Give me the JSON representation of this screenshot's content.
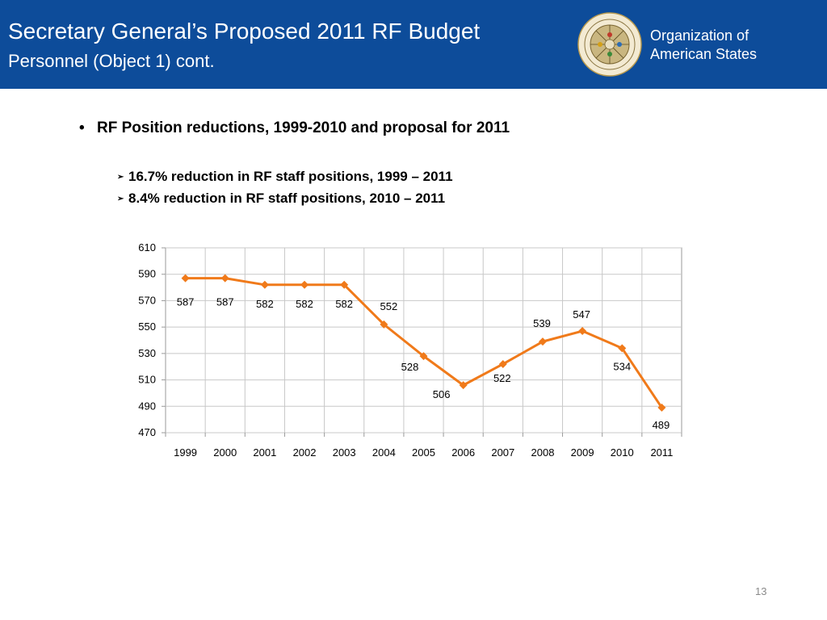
{
  "header": {
    "title": "Secretary General’s Proposed 2011 RF Budget",
    "subtitle": "Personnel (Object 1) cont.",
    "org_line1": "Organization of",
    "org_line2": "American States",
    "background_color": "#0d4c9a"
  },
  "content": {
    "main_bullet": "RF Position reductions, 1999-2010 and proposal for 2011",
    "sub_bullets": [
      "16.7% reduction in RF staff positions, 1999 – 2011",
      "8.4% reduction in RF staff positions, 2010 – 2011"
    ]
  },
  "chart_data": {
    "type": "line",
    "categories": [
      "1999",
      "2000",
      "2001",
      "2002",
      "2003",
      "2004",
      "2005",
      "2006",
      "2007",
      "2008",
      "2009",
      "2010",
      "2011"
    ],
    "values": [
      587,
      587,
      582,
      582,
      582,
      552,
      528,
      506,
      522,
      539,
      547,
      534,
      489
    ],
    "ylim": [
      470,
      610
    ],
    "yticks": [
      470,
      490,
      510,
      530,
      550,
      570,
      590,
      610
    ],
    "grid": true,
    "series_color": "#f07a1a",
    "marker": "diamond",
    "data_labels": true
  },
  "page_number": "13"
}
